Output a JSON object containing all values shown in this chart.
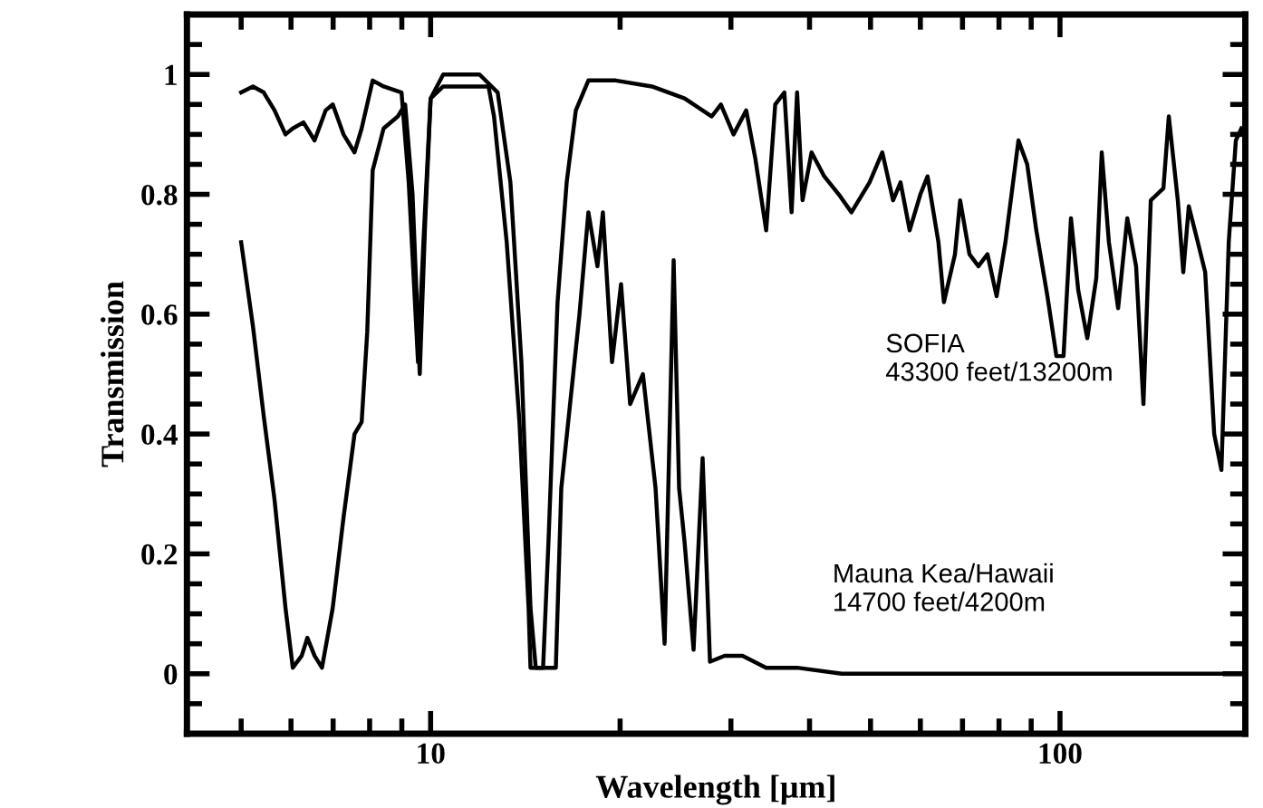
{
  "chart_data": {
    "type": "line",
    "xlabel": "Wavelength [μm]",
    "ylabel": "Transmission",
    "log": "x",
    "grid": false,
    "legend": false,
    "marker": "none",
    "line_style": "solid",
    "xlim": [
      4.1,
      197
    ],
    "ylim": [
      -0.1,
      1.1
    ],
    "xticks": [
      {
        "value": 5,
        "label": null
      },
      {
        "value": 6,
        "label": null
      },
      {
        "value": 7,
        "label": null
      },
      {
        "value": 8,
        "label": null
      },
      {
        "value": 9,
        "label": null
      },
      10,
      {
        "value": 20,
        "label": null
      },
      {
        "value": 30,
        "label": null
      },
      {
        "value": 40,
        "label": null
      },
      {
        "value": 50,
        "label": null
      },
      {
        "value": 60,
        "label": null
      },
      {
        "value": 70,
        "label": null
      },
      {
        "value": 80,
        "label": null
      },
      {
        "value": 90,
        "label": null
      },
      100
    ],
    "yticks": [
      {
        "value": -0.05,
        "label": null
      },
      0,
      {
        "value": 0.05,
        "label": null
      },
      {
        "value": 0.1,
        "label": null
      },
      {
        "value": 0.15,
        "label": null
      },
      0.2,
      {
        "value": 0.25,
        "label": null
      },
      {
        "value": 0.3,
        "label": null
      },
      {
        "value": 0.35,
        "label": null
      },
      0.4,
      {
        "value": 0.45,
        "label": null
      },
      {
        "value": 0.5,
        "label": null
      },
      {
        "value": 0.55,
        "label": null
      },
      0.6,
      {
        "value": 0.65,
        "label": null
      },
      {
        "value": 0.7,
        "label": null
      },
      {
        "value": 0.75,
        "label": null
      },
      0.8,
      {
        "value": 0.85,
        "label": null
      },
      {
        "value": 0.9,
        "label": null
      },
      {
        "value": 0.95,
        "label": null
      },
      1,
      {
        "value": 1.05,
        "label": null
      }
    ],
    "series": [
      {
        "name": "SOFIA\n43300 feet/13200m",
        "color": "#000000",
        "x": [
          5.0,
          5.22,
          5.43,
          5.65,
          5.88,
          6.04,
          6.28,
          6.54,
          6.81,
          6.99,
          7.27,
          7.57,
          7.77,
          8.09,
          8.42,
          8.99,
          9.23,
          9.55,
          9.74,
          10,
          10.47,
          11.96,
          12.78,
          13.39,
          13.94,
          14.41,
          14.69,
          15.09,
          15.39,
          15.91,
          16.45,
          17.01,
          17.81,
          19.68,
          22.47,
          25.32,
          27.97,
          28.92,
          30.29,
          31.73,
          32.8,
          34.13,
          35.28,
          36.48,
          37.46,
          38.22,
          38.99,
          40.3,
          42.21,
          44.51,
          46.63,
          49.82,
          52.2,
          54.3,
          55.8,
          57.7,
          60.0,
          61.6,
          64.1,
          65.4,
          68.1,
          69.4,
          71.8,
          74.2,
          76.7,
          79.3,
          81.9,
          85.9,
          88.7,
          91.7,
          95.5,
          98.7,
          101.3,
          104.1,
          106.9,
          110.5,
          114.2,
          116.5,
          119.6,
          123.7,
          127.9,
          132.1,
          135.7,
          139.4,
          146.0,
          148.9,
          153.9,
          157.0,
          160.2,
          165.6,
          170.1,
          175.8,
          180.5,
          185.4,
          190.3,
          194.2
        ],
        "values": [
          0.97,
          0.98,
          0.97,
          0.94,
          0.9,
          0.91,
          0.92,
          0.89,
          0.94,
          0.95,
          0.9,
          0.87,
          0.91,
          0.99,
          0.98,
          0.97,
          0.82,
          0.52,
          0.72,
          0.96,
          1.0,
          1.0,
          0.97,
          0.82,
          0.52,
          0.11,
          0.01,
          0.01,
          0.22,
          0.62,
          0.82,
          0.94,
          0.99,
          0.99,
          0.98,
          0.96,
          0.93,
          0.95,
          0.9,
          0.94,
          0.86,
          0.74,
          0.95,
          0.97,
          0.77,
          0.97,
          0.79,
          0.87,
          0.83,
          0.8,
          0.77,
          0.82,
          0.87,
          0.79,
          0.82,
          0.74,
          0.8,
          0.83,
          0.72,
          0.62,
          0.7,
          0.79,
          0.7,
          0.68,
          0.7,
          0.63,
          0.72,
          0.89,
          0.85,
          0.74,
          0.63,
          0.53,
          0.53,
          0.76,
          0.64,
          0.56,
          0.66,
          0.87,
          0.72,
          0.61,
          0.76,
          0.68,
          0.45,
          0.79,
          0.81,
          0.93,
          0.79,
          0.67,
          0.78,
          0.72,
          0.67,
          0.4,
          0.34,
          0.72,
          0.89,
          0.91
        ]
      },
      {
        "name": "Mauna Kea/Hawaii\n14700 feet/4200m",
        "color": "#000000",
        "x": [
          5.0,
          5.22,
          5.43,
          5.65,
          5.88,
          6.04,
          6.24,
          6.37,
          6.54,
          6.72,
          6.99,
          7.27,
          7.57,
          7.77,
          7.93,
          8.09,
          8.42,
          8.87,
          9.11,
          9.36,
          9.61,
          9.8,
          10,
          10.47,
          12.36,
          12.61,
          13.21,
          13.84,
          14.31,
          14.41,
          15.81,
          16.13,
          17.24,
          17.81,
          18.41,
          18.78,
          19.42,
          20.07,
          20.75,
          21.74,
          22.77,
          23.54,
          24.33,
          24.82,
          25.32,
          26.17,
          27.05,
          27.79,
          29.31,
          31.31,
          34.13,
          38.22,
          45,
          196.7
        ],
        "values": [
          0.72,
          0.58,
          0.43,
          0.29,
          0.11,
          0.01,
          0.03,
          0.06,
          0.03,
          0.01,
          0.11,
          0.26,
          0.4,
          0.42,
          0.57,
          0.84,
          0.91,
          0.93,
          0.95,
          0.8,
          0.5,
          0.75,
          0.96,
          0.98,
          0.98,
          0.93,
          0.72,
          0.42,
          0.11,
          0.01,
          0.01,
          0.31,
          0.6,
          0.77,
          0.68,
          0.77,
          0.52,
          0.65,
          0.45,
          0.5,
          0.31,
          0.05,
          0.69,
          0.31,
          0.22,
          0.04,
          0.36,
          0.02,
          0.03,
          0.03,
          0.01,
          0.01,
          0.0,
          0.0
        ]
      }
    ]
  }
}
